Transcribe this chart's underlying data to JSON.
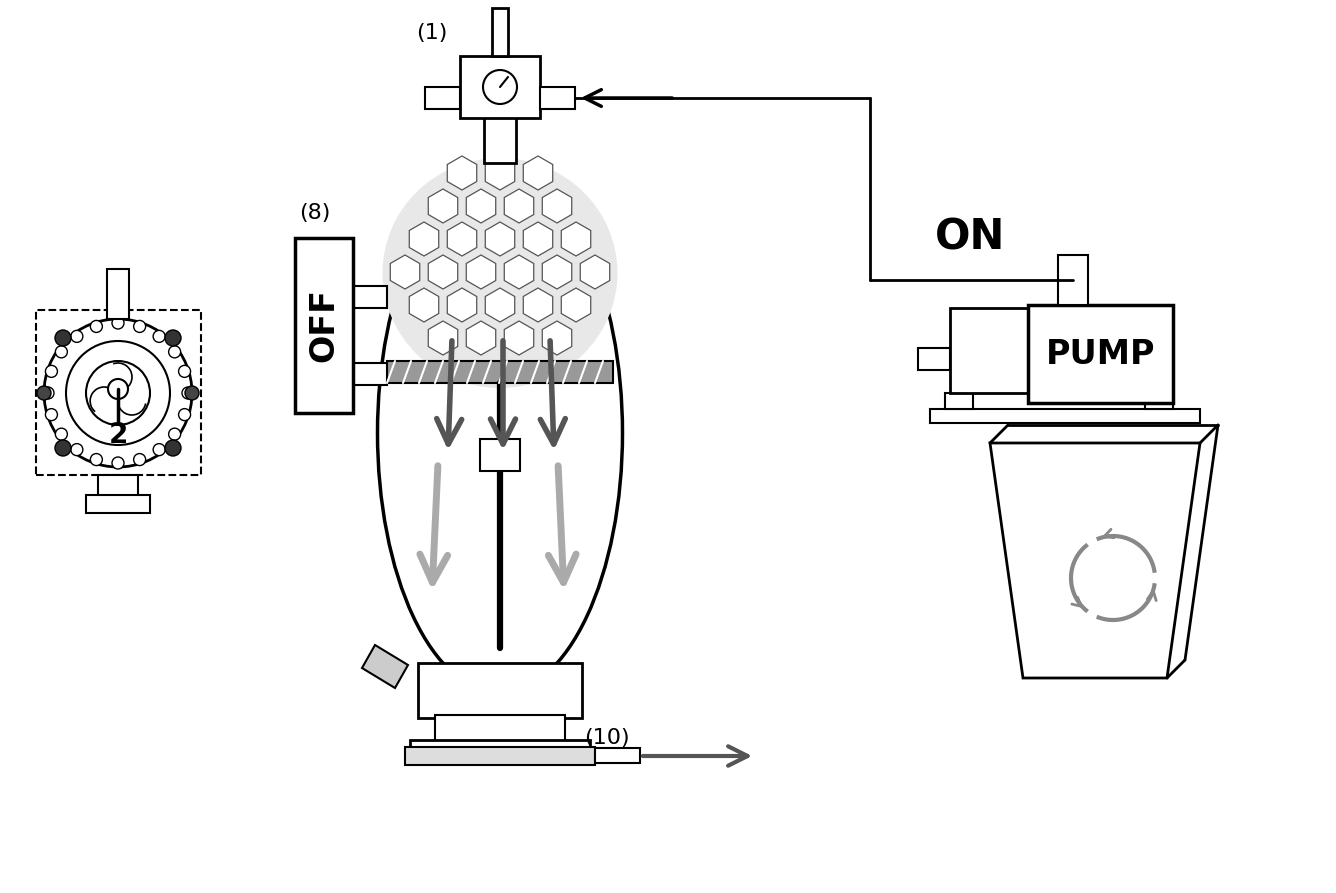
{
  "bg_color": "#ffffff",
  "line_color": "#000000",
  "gray_color": "#888888",
  "light_gray": "#cccccc",
  "dark_gray": "#555555",
  "pump_label": "PUMP",
  "on_label": "ON",
  "off_label": "OFF",
  "label_1": "(1)",
  "label_8": "(8)",
  "label_10": "(10)",
  "label_2": "2"
}
